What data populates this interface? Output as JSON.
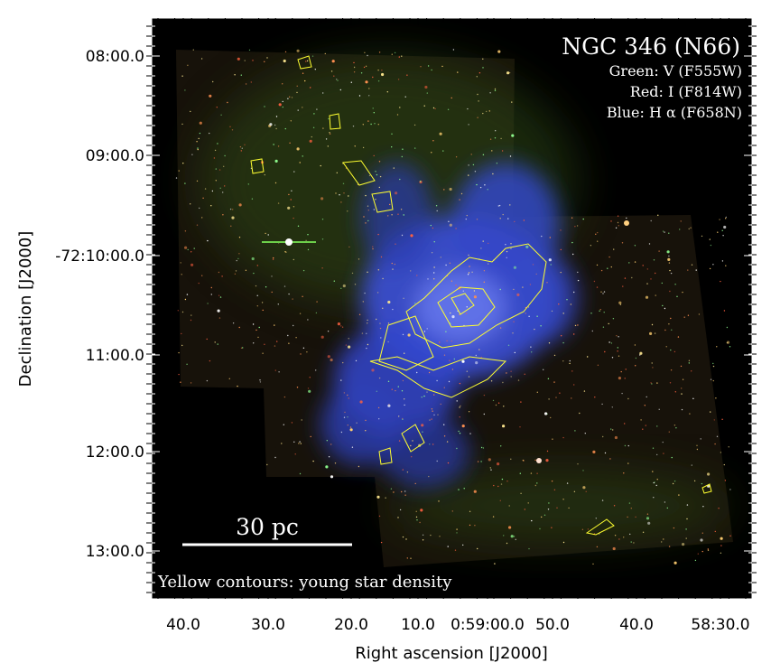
{
  "title": "NGC 346 (N66)",
  "legend": [
    "Green: V (F555W)",
    "Red: I (F814W)",
    "Blue: H α (F658N)"
  ],
  "scale_bar": "30 pc",
  "note": "Yellow contours: young star density",
  "x_axis": {
    "label": "Right ascension [J2000]",
    "ticks": [
      "40.0",
      "30.0",
      "20.0",
      "10.0",
      "0:59:00.0",
      "50.0",
      "40.0",
      "58:30.0"
    ]
  },
  "y_axis": {
    "label": "Declination [J2000]",
    "ticks": [
      "08:00.0",
      "09:00.0",
      "-72:10:00.0",
      "11:00.0",
      "12:00.0",
      "13:00.0"
    ]
  }
}
